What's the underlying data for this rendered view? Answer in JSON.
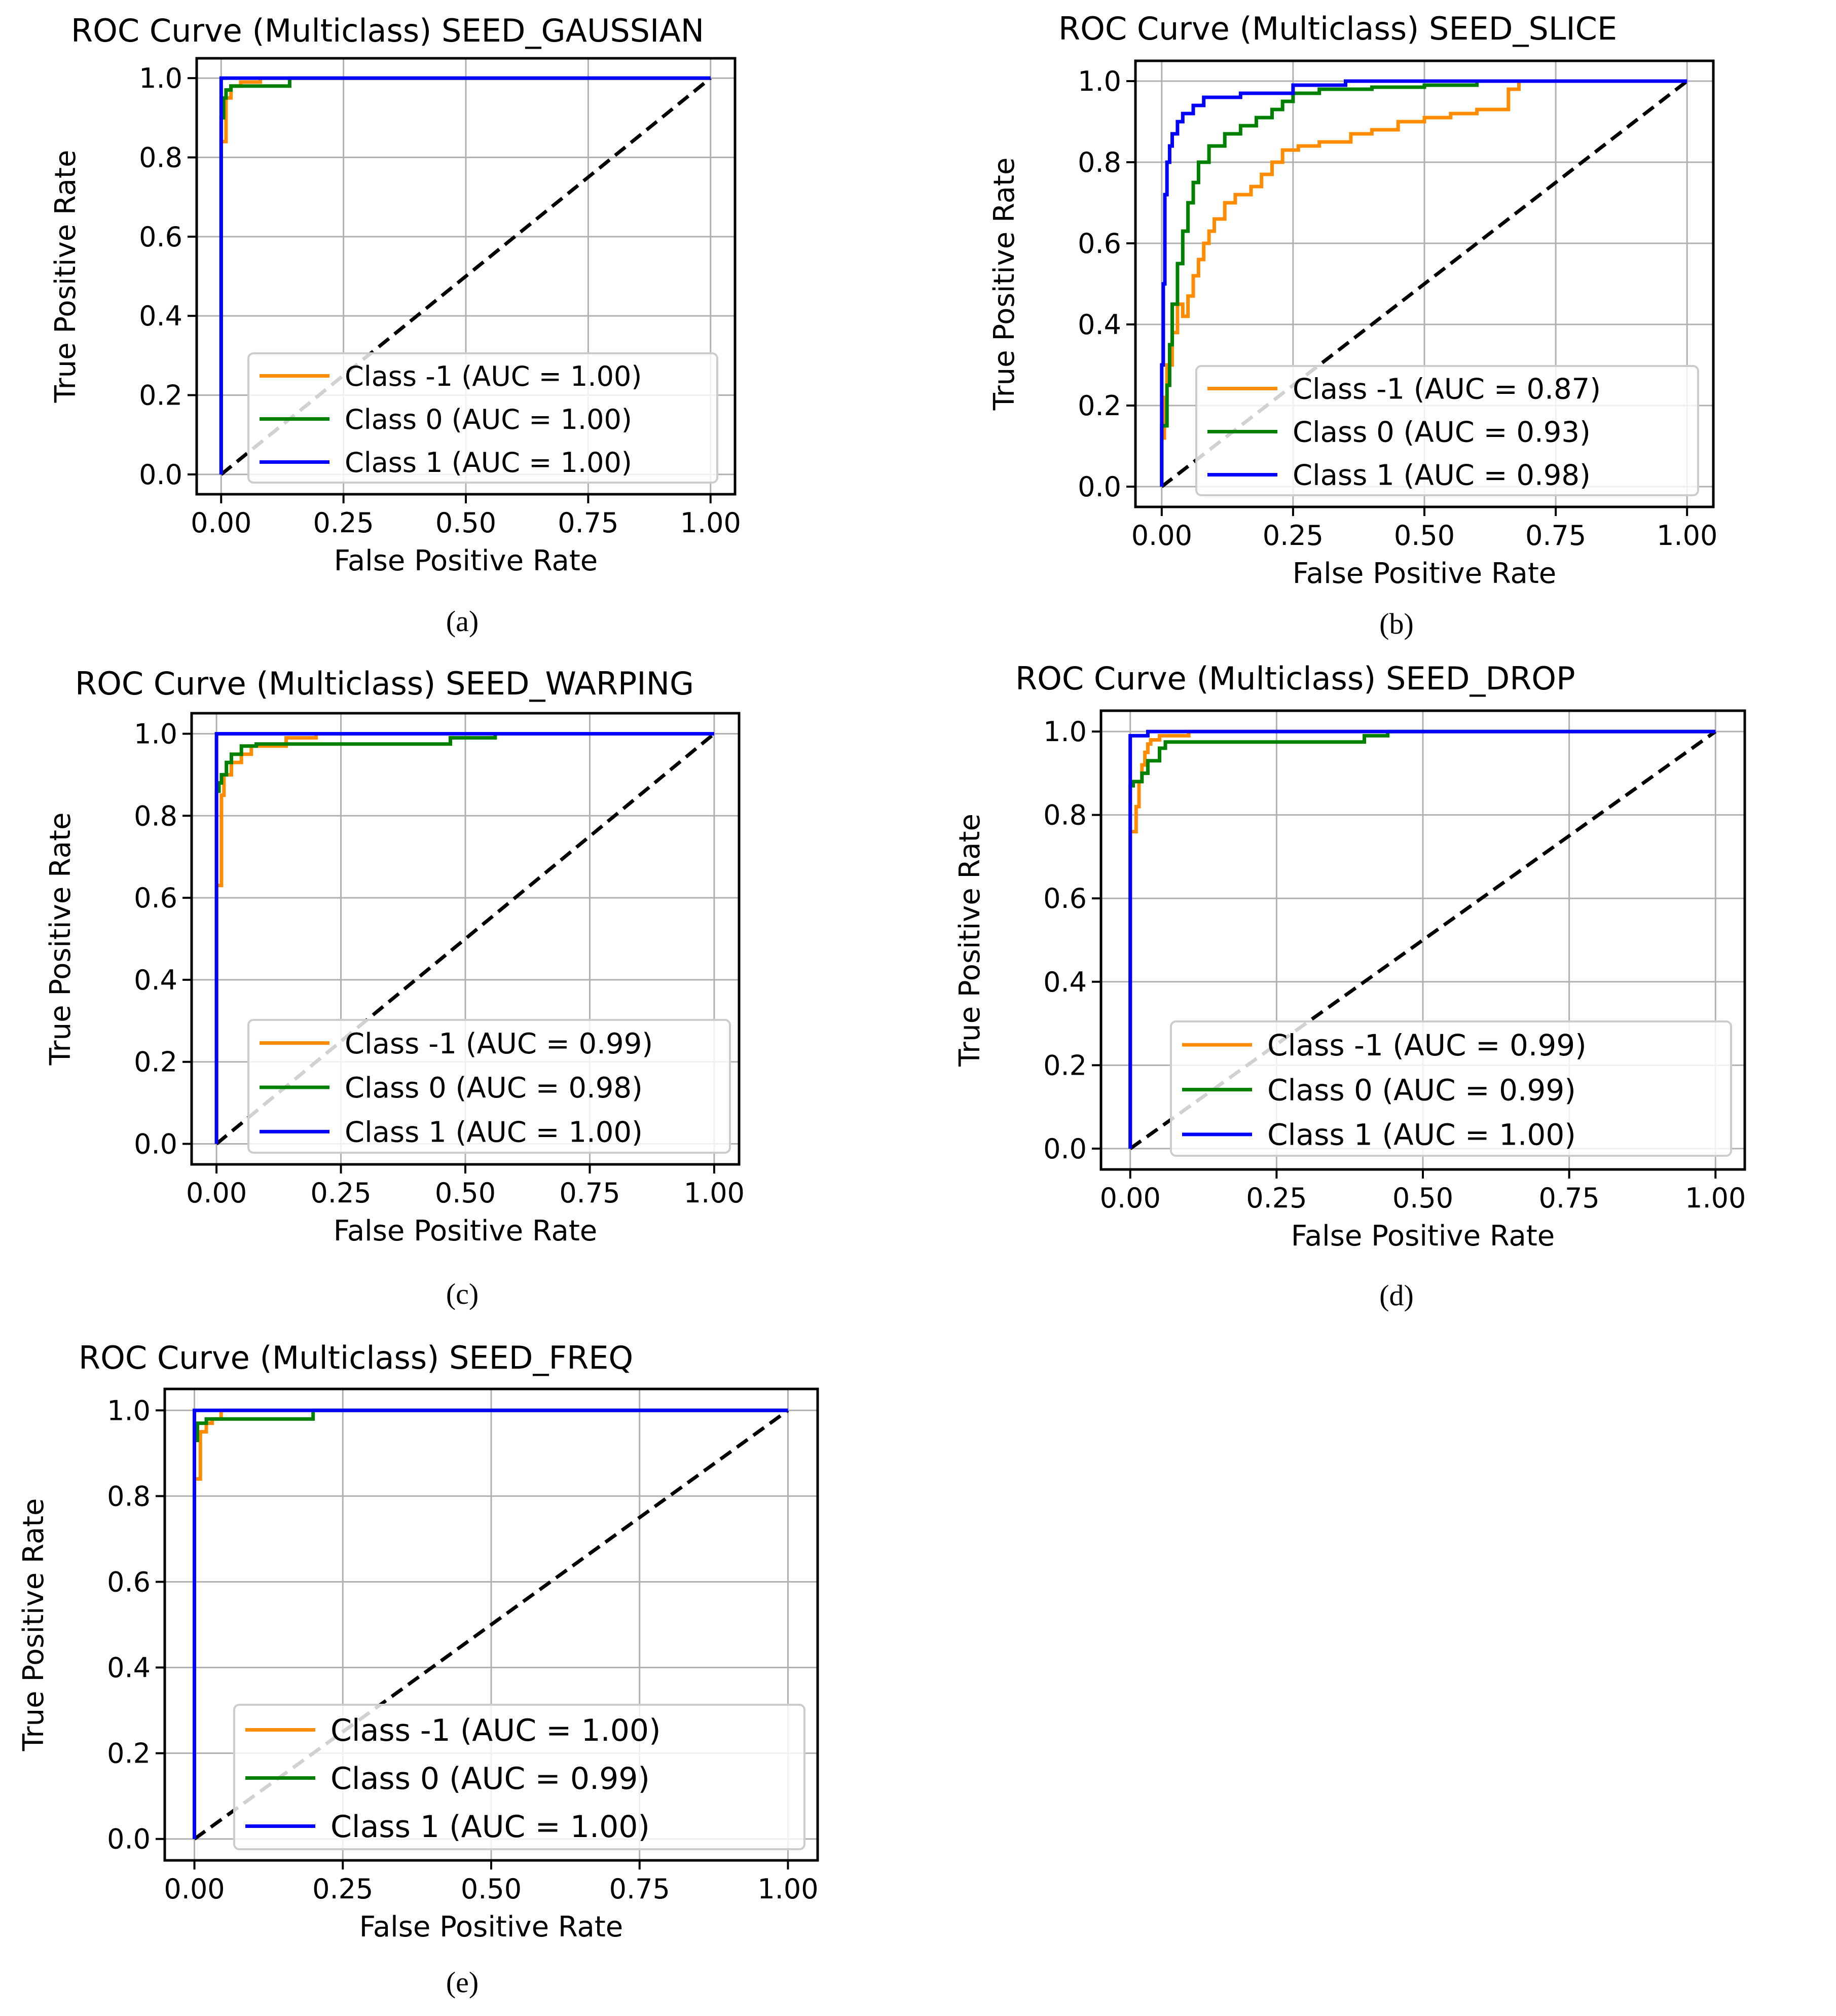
{
  "chart_data": [
    {
      "type": "line",
      "panel_label": "(a)",
      "title": "ROC Curve (Multiclass) SEED_GAUSSIAN",
      "xlabel": "False Positive Rate",
      "ylabel": "True Positive Rate",
      "xlim": [
        0,
        1
      ],
      "ylim": [
        0,
        1
      ],
      "xticks": [
        0.0,
        0.25,
        0.5,
        0.75,
        1.0
      ],
      "xtick_labels": [
        "0.00",
        "0.25",
        "0.50",
        "0.75",
        "1.00"
      ],
      "yticks": [
        0.0,
        0.2,
        0.4,
        0.6,
        0.8,
        1.0
      ],
      "ytick_labels": [
        "0.0",
        "0.2",
        "0.4",
        "0.6",
        "0.8",
        "1.0"
      ],
      "grid": true,
      "legend_position": "lower-right",
      "series": [
        {
          "name": "Class -1 (AUC = 1.00)",
          "color": "#ff8c00",
          "x": [
            0,
            0.0,
            0.01,
            0.01,
            0.02,
            0.02,
            0.04,
            0.04,
            0.08,
            0.08,
            1.0
          ],
          "y": [
            0,
            0.84,
            0.84,
            0.95,
            0.95,
            0.98,
            0.98,
            0.99,
            0.99,
            1.0,
            1.0
          ]
        },
        {
          "name": "Class 0 (AUC = 1.00)",
          "color": "#008000",
          "x": [
            0,
            0.0,
            0.005,
            0.005,
            0.01,
            0.01,
            0.02,
            0.02,
            0.14,
            0.14,
            1.0
          ],
          "y": [
            0,
            0.9,
            0.9,
            0.95,
            0.95,
            0.97,
            0.97,
            0.98,
            0.98,
            1.0,
            1.0
          ]
        },
        {
          "name": "Class 1 (AUC = 1.00)",
          "color": "#0000ff",
          "x": [
            0,
            0.0,
            1.0
          ],
          "y": [
            0,
            1.0,
            1.0
          ]
        }
      ]
    },
    {
      "type": "line",
      "panel_label": "(b)",
      "title": "ROC Curve (Multiclass) SEED_SLICE",
      "xlabel": "False Positive Rate",
      "ylabel": "True Positive Rate",
      "xlim": [
        0,
        1
      ],
      "ylim": [
        0,
        1
      ],
      "xticks": [
        0.0,
        0.25,
        0.5,
        0.75,
        1.0
      ],
      "xtick_labels": [
        "0.00",
        "0.25",
        "0.50",
        "0.75",
        "1.00"
      ],
      "yticks": [
        0.0,
        0.2,
        0.4,
        0.6,
        0.8,
        1.0
      ],
      "ytick_labels": [
        "0.0",
        "0.2",
        "0.4",
        "0.6",
        "0.8",
        "1.0"
      ],
      "grid": true,
      "legend_position": "lower-right",
      "series": [
        {
          "name": "Class -1 (AUC = 0.87)",
          "color": "#ff8c00",
          "x": [
            0,
            0.0,
            0.005,
            0.005,
            0.01,
            0.01,
            0.02,
            0.02,
            0.03,
            0.03,
            0.04,
            0.04,
            0.05,
            0.05,
            0.06,
            0.06,
            0.07,
            0.07,
            0.08,
            0.08,
            0.09,
            0.09,
            0.1,
            0.1,
            0.12,
            0.12,
            0.14,
            0.14,
            0.17,
            0.17,
            0.19,
            0.19,
            0.21,
            0.21,
            0.23,
            0.23,
            0.26,
            0.26,
            0.3,
            0.3,
            0.36,
            0.36,
            0.4,
            0.4,
            0.45,
            0.45,
            0.5,
            0.5,
            0.55,
            0.55,
            0.6,
            0.6,
            0.66,
            0.66,
            0.68,
            0.68,
            1.0
          ],
          "y": [
            0,
            0.12,
            0.12,
            0.22,
            0.22,
            0.3,
            0.3,
            0.38,
            0.38,
            0.45,
            0.45,
            0.42,
            0.42,
            0.47,
            0.47,
            0.52,
            0.52,
            0.56,
            0.56,
            0.6,
            0.6,
            0.63,
            0.63,
            0.66,
            0.66,
            0.7,
            0.7,
            0.72,
            0.72,
            0.74,
            0.74,
            0.77,
            0.77,
            0.8,
            0.8,
            0.83,
            0.83,
            0.84,
            0.84,
            0.85,
            0.85,
            0.87,
            0.87,
            0.88,
            0.88,
            0.9,
            0.9,
            0.91,
            0.91,
            0.92,
            0.92,
            0.93,
            0.93,
            0.98,
            0.98,
            1.0,
            1.0
          ]
        },
        {
          "name": "Class 0 (AUC = 0.93)",
          "color": "#008000",
          "x": [
            0,
            0.0,
            0.01,
            0.01,
            0.015,
            0.015,
            0.02,
            0.02,
            0.03,
            0.03,
            0.04,
            0.04,
            0.05,
            0.05,
            0.06,
            0.06,
            0.07,
            0.07,
            0.09,
            0.09,
            0.12,
            0.12,
            0.15,
            0.15,
            0.18,
            0.18,
            0.21,
            0.21,
            0.23,
            0.23,
            0.25,
            0.25,
            0.3,
            0.3,
            0.4,
            0.4,
            0.5,
            0.5,
            0.6,
            0.6,
            1.0
          ],
          "y": [
            0,
            0.15,
            0.15,
            0.25,
            0.25,
            0.35,
            0.35,
            0.45,
            0.45,
            0.55,
            0.55,
            0.63,
            0.63,
            0.7,
            0.7,
            0.75,
            0.75,
            0.8,
            0.8,
            0.84,
            0.84,
            0.87,
            0.87,
            0.89,
            0.89,
            0.91,
            0.91,
            0.93,
            0.93,
            0.95,
            0.95,
            0.97,
            0.97,
            0.98,
            0.98,
            0.985,
            0.985,
            0.99,
            0.99,
            1.0,
            1.0
          ]
        },
        {
          "name": "Class 1 (AUC = 0.98)",
          "color": "#0000ff",
          "x": [
            0,
            0.0,
            0.003,
            0.003,
            0.006,
            0.006,
            0.01,
            0.01,
            0.015,
            0.015,
            0.02,
            0.02,
            0.03,
            0.03,
            0.04,
            0.04,
            0.06,
            0.06,
            0.08,
            0.08,
            0.15,
            0.15,
            0.25,
            0.25,
            0.35,
            0.35,
            1.0
          ],
          "y": [
            0,
            0.3,
            0.3,
            0.5,
            0.5,
            0.72,
            0.72,
            0.8,
            0.8,
            0.84,
            0.84,
            0.87,
            0.87,
            0.9,
            0.9,
            0.92,
            0.92,
            0.94,
            0.94,
            0.96,
            0.96,
            0.97,
            0.97,
            0.99,
            0.99,
            1.0,
            1.0
          ]
        }
      ]
    },
    {
      "type": "line",
      "panel_label": "(c)",
      "title": "ROC Curve (Multiclass) SEED_WARPING",
      "xlabel": "False Positive Rate",
      "ylabel": "True Positive Rate",
      "xlim": [
        0,
        1
      ],
      "ylim": [
        0,
        1
      ],
      "xticks": [
        0.0,
        0.25,
        0.5,
        0.75,
        1.0
      ],
      "xtick_labels": [
        "0.00",
        "0.25",
        "0.50",
        "0.75",
        "1.00"
      ],
      "yticks": [
        0.0,
        0.2,
        0.4,
        0.6,
        0.8,
        1.0
      ],
      "ytick_labels": [
        "0.0",
        "0.2",
        "0.4",
        "0.6",
        "0.8",
        "1.0"
      ],
      "grid": true,
      "legend_position": "lower-right",
      "series": [
        {
          "name": "Class -1 (AUC = 0.99)",
          "color": "#ff8c00",
          "x": [
            0,
            0.0,
            0.01,
            0.01,
            0.015,
            0.015,
            0.03,
            0.03,
            0.05,
            0.05,
            0.07,
            0.07,
            0.14,
            0.14,
            0.2,
            0.2,
            1.0
          ],
          "y": [
            0,
            0.63,
            0.63,
            0.85,
            0.85,
            0.9,
            0.9,
            0.93,
            0.93,
            0.95,
            0.95,
            0.97,
            0.97,
            0.99,
            0.99,
            1.0,
            1.0
          ]
        },
        {
          "name": "Class 0 (AUC = 0.98)",
          "color": "#008000",
          "x": [
            0,
            0.0,
            0.005,
            0.005,
            0.01,
            0.01,
            0.02,
            0.02,
            0.03,
            0.03,
            0.05,
            0.05,
            0.08,
            0.08,
            0.47,
            0.47,
            0.56,
            0.56,
            1.0
          ],
          "y": [
            0,
            0.86,
            0.86,
            0.88,
            0.88,
            0.9,
            0.9,
            0.93,
            0.93,
            0.95,
            0.95,
            0.97,
            0.97,
            0.975,
            0.975,
            0.99,
            0.99,
            1.0,
            1.0
          ]
        },
        {
          "name": "Class 1 (AUC = 1.00)",
          "color": "#0000ff",
          "x": [
            0,
            0.0,
            1.0
          ],
          "y": [
            0,
            1.0,
            1.0
          ]
        }
      ]
    },
    {
      "type": "line",
      "panel_label": "(d)",
      "title": "ROC Curve (Multiclass) SEED_DROP",
      "xlabel": "False Positive Rate",
      "ylabel": "True Positive Rate",
      "xlim": [
        0,
        1
      ],
      "ylim": [
        0,
        1
      ],
      "xticks": [
        0.0,
        0.25,
        0.5,
        0.75,
        1.0
      ],
      "xtick_labels": [
        "0.00",
        "0.25",
        "0.50",
        "0.75",
        "1.00"
      ],
      "yticks": [
        0.0,
        0.2,
        0.4,
        0.6,
        0.8,
        1.0
      ],
      "ytick_labels": [
        "0.0",
        "0.2",
        "0.4",
        "0.6",
        "0.8",
        "1.0"
      ],
      "grid": true,
      "legend_position": "lower-right",
      "series": [
        {
          "name": "Class -1 (AUC = 0.99)",
          "color": "#ff8c00",
          "x": [
            0,
            0.0,
            0.01,
            0.01,
            0.015,
            0.015,
            0.02,
            0.02,
            0.025,
            0.025,
            0.03,
            0.03,
            0.035,
            0.035,
            0.05,
            0.05,
            0.1,
            0.1,
            1.0
          ],
          "y": [
            0,
            0.76,
            0.76,
            0.82,
            0.82,
            0.88,
            0.88,
            0.92,
            0.92,
            0.95,
            0.95,
            0.97,
            0.97,
            0.98,
            0.98,
            0.99,
            0.99,
            1.0,
            1.0
          ]
        },
        {
          "name": "Class 0 (AUC = 0.99)",
          "color": "#008000",
          "x": [
            0,
            0.0,
            0.005,
            0.005,
            0.02,
            0.02,
            0.03,
            0.03,
            0.05,
            0.05,
            0.06,
            0.06,
            0.4,
            0.4,
            0.44,
            0.44,
            1.0
          ],
          "y": [
            0,
            0.87,
            0.87,
            0.88,
            0.88,
            0.9,
            0.9,
            0.93,
            0.93,
            0.96,
            0.96,
            0.975,
            0.975,
            0.99,
            0.99,
            1.0,
            1.0
          ]
        },
        {
          "name": "Class 1 (AUC = 1.00)",
          "color": "#0000ff",
          "x": [
            0,
            0.0,
            0.03,
            0.03,
            1.0
          ],
          "y": [
            0,
            0.99,
            0.99,
            1.0,
            1.0
          ]
        }
      ]
    },
    {
      "type": "line",
      "panel_label": "(e)",
      "title": "ROC Curve (Multiclass) SEED_FREQ",
      "xlabel": "False Positive Rate",
      "ylabel": "True Positive Rate",
      "xlim": [
        0,
        1
      ],
      "ylim": [
        0,
        1
      ],
      "xticks": [
        0.0,
        0.25,
        0.5,
        0.75,
        1.0
      ],
      "xtick_labels": [
        "0.00",
        "0.25",
        "0.50",
        "0.75",
        "1.00"
      ],
      "yticks": [
        0.0,
        0.2,
        0.4,
        0.6,
        0.8,
        1.0
      ],
      "ytick_labels": [
        "0.0",
        "0.2",
        "0.4",
        "0.6",
        "0.8",
        "1.0"
      ],
      "grid": true,
      "legend_position": "lower-right",
      "series": [
        {
          "name": "Class -1 (AUC = 1.00)",
          "color": "#ff8c00",
          "x": [
            0,
            0.0,
            0.01,
            0.01,
            0.02,
            0.02,
            0.03,
            0.03,
            0.045,
            0.045,
            1.0
          ],
          "y": [
            0,
            0.84,
            0.84,
            0.95,
            0.95,
            0.97,
            0.97,
            0.98,
            0.98,
            1.0,
            1.0
          ]
        },
        {
          "name": "Class 0 (AUC = 0.99)",
          "color": "#008000",
          "x": [
            0,
            0.0,
            0.005,
            0.005,
            0.02,
            0.02,
            0.2,
            0.2,
            1.0
          ],
          "y": [
            0,
            0.93,
            0.93,
            0.97,
            0.97,
            0.98,
            0.98,
            1.0,
            1.0
          ]
        },
        {
          "name": "Class 1 (AUC = 1.00)",
          "color": "#0000ff",
          "x": [
            0,
            0.0,
            1.0
          ],
          "y": [
            0,
            1.0,
            1.0
          ]
        }
      ]
    }
  ]
}
